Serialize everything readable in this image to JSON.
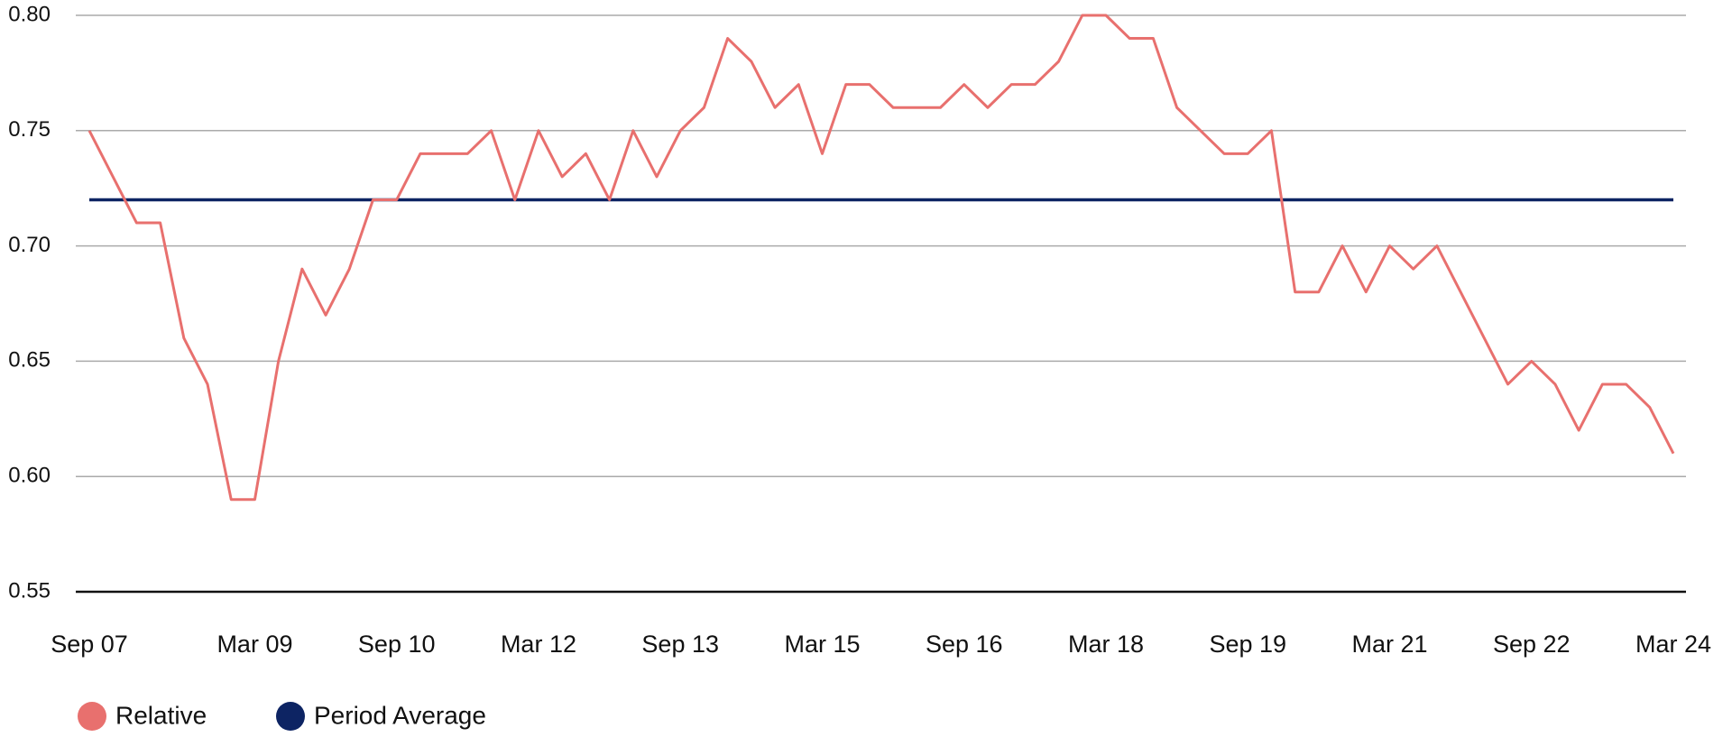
{
  "chart_data": {
    "type": "line",
    "categories": [
      "Sep 07",
      null,
      null,
      null,
      null,
      null,
      null,
      "Mar 09",
      null,
      null,
      null,
      null,
      null,
      "Sep 10",
      null,
      null,
      null,
      null,
      null,
      "Mar 12",
      null,
      null,
      null,
      null,
      null,
      "Sep 13",
      null,
      null,
      null,
      null,
      null,
      "Mar 15",
      null,
      null,
      null,
      null,
      null,
      "Sep 16",
      null,
      null,
      null,
      null,
      null,
      "Mar 18",
      null,
      null,
      null,
      null,
      null,
      "Sep 19",
      null,
      null,
      null,
      null,
      null,
      "Mar 21",
      null,
      null,
      null,
      null,
      null,
      "Sep 22",
      null,
      null,
      null,
      null,
      null,
      "Mar 24"
    ],
    "series": [
      {
        "name": "Relative",
        "color": "#e8706e",
        "values": [
          0.75,
          0.73,
          0.71,
          0.71,
          0.66,
          0.64,
          0.59,
          0.59,
          0.65,
          0.69,
          0.67,
          0.69,
          0.72,
          0.72,
          0.74,
          0.74,
          0.74,
          0.75,
          0.72,
          0.75,
          0.73,
          0.74,
          0.72,
          0.75,
          0.73,
          0.75,
          0.76,
          0.79,
          0.78,
          0.76,
          0.77,
          0.74,
          0.77,
          0.77,
          0.76,
          0.76,
          0.76,
          0.77,
          0.76,
          0.77,
          0.77,
          0.78,
          0.8,
          0.8,
          0.79,
          0.79,
          0.76,
          0.75,
          0.74,
          0.74,
          0.75,
          0.68,
          0.68,
          0.7,
          0.68,
          0.7,
          0.69,
          0.7,
          0.68,
          0.66,
          0.64,
          0.65,
          0.64,
          0.62,
          0.64,
          0.64,
          0.63,
          0.61
        ]
      },
      {
        "name": "Period Average",
        "color": "#0d2463",
        "values": [
          0.72,
          0.72,
          0.72,
          0.72,
          0.72,
          0.72,
          0.72,
          0.72,
          0.72,
          0.72,
          0.72,
          0.72,
          0.72,
          0.72,
          0.72,
          0.72,
          0.72,
          0.72,
          0.72,
          0.72,
          0.72,
          0.72,
          0.72,
          0.72,
          0.72,
          0.72,
          0.72,
          0.72,
          0.72,
          0.72,
          0.72,
          0.72,
          0.72,
          0.72,
          0.72,
          0.72,
          0.72,
          0.72,
          0.72,
          0.72,
          0.72,
          0.72,
          0.72,
          0.72,
          0.72,
          0.72,
          0.72,
          0.72,
          0.72,
          0.72,
          0.72,
          0.72,
          0.72,
          0.72,
          0.72,
          0.72,
          0.72,
          0.72,
          0.72,
          0.72,
          0.72,
          0.72,
          0.72,
          0.72,
          0.72,
          0.72,
          0.72,
          0.72
        ]
      }
    ],
    "ylim": [
      0.55,
      0.8
    ],
    "yticks": [
      {
        "value": 0.55,
        "label": "0.55"
      },
      {
        "value": 0.6,
        "label": "0.60"
      },
      {
        "value": 0.65,
        "label": "0.65"
      },
      {
        "value": 0.7,
        "label": "0.70"
      },
      {
        "value": 0.75,
        "label": "0.75"
      },
      {
        "value": 0.8,
        "label": "0.80"
      }
    ],
    "grid": true
  }
}
